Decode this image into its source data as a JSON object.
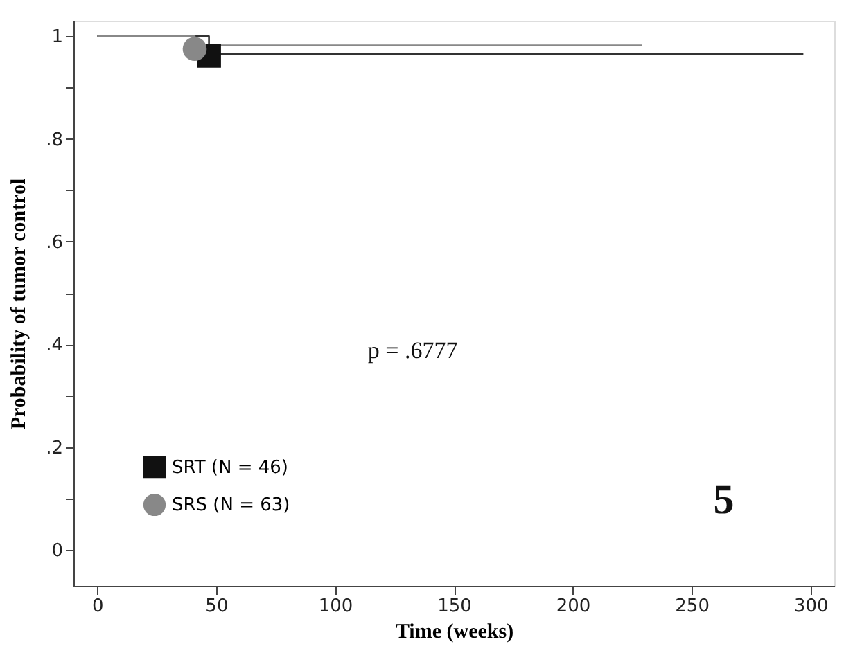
{
  "chart_data": {
    "type": "step",
    "xlabel": "Time (weeks)",
    "ylabel": "Probability of tumor control",
    "xlim": [
      -10,
      310
    ],
    "ylim": [
      -0.07,
      1.03
    ],
    "xticks": [
      0,
      50,
      100,
      150,
      200,
      250,
      300
    ],
    "yticks": [
      {
        "value": 0,
        "label": "0"
      },
      {
        "value": 0.1,
        "label": null
      },
      {
        "value": 0.2,
        "label": ".2"
      },
      {
        "value": 0.3,
        "label": null
      },
      {
        "value": 0.4,
        "label": ".4"
      },
      {
        "value": 0.5,
        "label": null
      },
      {
        "value": 0.6,
        "label": ".6"
      },
      {
        "value": 0.7,
        "label": null
      },
      {
        "value": 0.8,
        "label": ".8"
      },
      {
        "value": 0.9,
        "label": null
      },
      {
        "value": 1,
        "label": "1"
      }
    ],
    "series": [
      {
        "color": "#333333",
        "x": [
          0,
          47,
          297
        ],
        "values": [
          1,
          0.965,
          0.965
        ]
      },
      {
        "color": "#888888",
        "x": [
          0,
          41,
          229
        ],
        "values": [
          1,
          0.982,
          0.982
        ]
      },
      {
        "type": "scatter",
        "name": "SRT (N = 46)",
        "color": "#111111",
        "marker": "square",
        "x": [
          47
        ],
        "values": [
          0.962
        ]
      },
      {
        "type": "scatter",
        "name": "SRS (N = 63)",
        "color": "#888888",
        "marker": "circle",
        "x": [
          41
        ],
        "values": [
          0.975
        ]
      }
    ],
    "legend": "bottom left",
    "grid": false,
    "annotations": [
      "p = .6777",
      "5"
    ]
  }
}
